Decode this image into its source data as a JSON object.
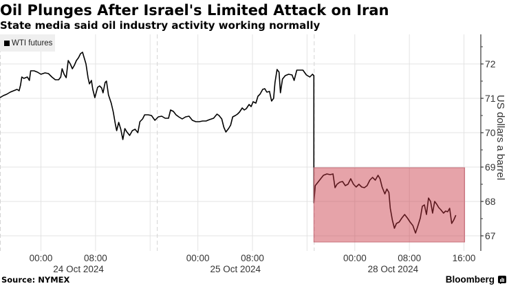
{
  "header": {
    "title": "Oil Plunges After Israel's Limited Attack on Iran",
    "subtitle": "State media said oil industry activity working normally"
  },
  "legend": {
    "items": [
      {
        "label": "WTI futures",
        "icon": "square-swatch-icon",
        "color": "#000000"
      }
    ]
  },
  "footer": {
    "source": "Source: NYMEX",
    "brand": "Bloomberg",
    "brand_icon": "bloomberg-terminal-icon"
  },
  "colors": {
    "line": "#000000",
    "grid": "#e3e3e3",
    "axis": "#333333",
    "tick_label": "#333333",
    "highlight_fill": "rgba(200,50,65,0.45)",
    "highlight_stroke": "#c8707c",
    "legend_bg": "#efefef"
  },
  "chart_data": {
    "type": "line",
    "title": "Oil Plunges After Israel's Limited Attack on Iran",
    "subtitle": "State media said oil industry activity working normally",
    "xlabel": "",
    "ylabel": "US dollars a barrel",
    "ylim": [
      66.56,
      72.86
    ],
    "grid": true,
    "legend_position": "top-left",
    "x_ticks": [
      {
        "x": 6,
        "label": "00:00"
      },
      {
        "x": 14,
        "label": "08:00"
      },
      {
        "x": 29,
        "label": "00:00"
      },
      {
        "x": 37,
        "label": "08:00"
      },
      {
        "x": 52,
        "label": "00:00"
      },
      {
        "x": 60,
        "label": "08:00"
      },
      {
        "x": 68,
        "label": "16:00"
      }
    ],
    "x_gridlines": [
      6,
      14,
      22,
      29,
      37,
      45,
      52,
      60,
      68
    ],
    "session_breaks": [
      0,
      23,
      46
    ],
    "date_labels": [
      {
        "x": 11.5,
        "label": "24 Oct 2024"
      },
      {
        "x": 34.5,
        "label": "25 Oct 2024"
      },
      {
        "x": 57.6,
        "label": "28 Oct 2024"
      }
    ],
    "y_ticks": [
      67,
      68,
      69,
      70,
      71,
      72
    ],
    "y_minor_ticks": [
      67.5,
      68.5,
      69.5,
      70.5,
      71.5,
      72.5
    ],
    "highlight": {
      "x_start": 46,
      "x_end": 68.1,
      "y_low": 66.82,
      "y_high": 68.98
    },
    "series": [
      {
        "name": "WTI futures",
        "points": [
          [
            0.0,
            71.02
          ],
          [
            0.5,
            71.08
          ],
          [
            1.0,
            71.12
          ],
          [
            1.5,
            71.18
          ],
          [
            2.0,
            71.22
          ],
          [
            2.5,
            71.26
          ],
          [
            2.8,
            71.22
          ],
          [
            3.0,
            71.38
          ],
          [
            3.2,
            71.62
          ],
          [
            3.5,
            71.58
          ],
          [
            4.0,
            71.62
          ],
          [
            4.3,
            71.52
          ],
          [
            4.5,
            71.8
          ],
          [
            5.0,
            71.8
          ],
          [
            5.5,
            71.76
          ],
          [
            6.0,
            71.7
          ],
          [
            6.6,
            71.74
          ],
          [
            7.1,
            71.72
          ],
          [
            7.6,
            71.62
          ],
          [
            8.1,
            71.54
          ],
          [
            8.6,
            71.54
          ],
          [
            8.9,
            71.62
          ],
          [
            9.1,
            71.86
          ],
          [
            9.4,
            71.7
          ],
          [
            9.7,
            71.6
          ],
          [
            10.0,
            72.1
          ],
          [
            10.3,
            72.0
          ],
          [
            10.6,
            71.86
          ],
          [
            10.9,
            71.96
          ],
          [
            11.2,
            72.1
          ],
          [
            11.5,
            72.18
          ],
          [
            11.8,
            72.3
          ],
          [
            12.1,
            72.34
          ],
          [
            12.6,
            72.0
          ],
          [
            12.9,
            71.6
          ],
          [
            13.1,
            71.42
          ],
          [
            13.4,
            71.52
          ],
          [
            13.6,
            71.26
          ],
          [
            13.9,
            71.02
          ],
          [
            14.3,
            71.32
          ],
          [
            14.6,
            71.36
          ],
          [
            14.9,
            71.3
          ],
          [
            15.1,
            71.16
          ],
          [
            15.4,
            71.46
          ],
          [
            15.6,
            71.5
          ],
          [
            15.9,
            71.1
          ],
          [
            16.3,
            70.86
          ],
          [
            16.6,
            70.6
          ],
          [
            16.9,
            70.26
          ],
          [
            17.1,
            70.06
          ],
          [
            17.4,
            70.3
          ],
          [
            17.7,
            70.1
          ],
          [
            18.0,
            69.8
          ],
          [
            18.3,
            70.12
          ],
          [
            18.6,
            70.02
          ],
          [
            19.0,
            69.92
          ],
          [
            19.4,
            70.06
          ],
          [
            19.8,
            70.1
          ],
          [
            20.2,
            70.0
          ],
          [
            20.5,
            70.32
          ],
          [
            20.9,
            70.4
          ],
          [
            21.2,
            70.52
          ],
          [
            21.7,
            70.52
          ],
          [
            22.2,
            70.5
          ],
          [
            22.7,
            70.36
          ],
          [
            23.2,
            70.46
          ],
          [
            23.7,
            70.48
          ],
          [
            24.2,
            70.42
          ],
          [
            24.7,
            70.42
          ],
          [
            25.0,
            70.66
          ],
          [
            25.4,
            70.62
          ],
          [
            25.8,
            70.52
          ],
          [
            26.2,
            70.46
          ],
          [
            26.7,
            70.4
          ],
          [
            27.2,
            70.46
          ],
          [
            27.7,
            70.48
          ],
          [
            28.2,
            70.36
          ],
          [
            28.7,
            70.32
          ],
          [
            29.2,
            70.32
          ],
          [
            29.7,
            70.34
          ],
          [
            30.2,
            70.34
          ],
          [
            30.7,
            70.38
          ],
          [
            31.3,
            70.42
          ],
          [
            31.8,
            70.54
          ],
          [
            32.1,
            70.5
          ],
          [
            32.5,
            70.4
          ],
          [
            32.8,
            70.16
          ],
          [
            33.1,
            70.02
          ],
          [
            33.5,
            70.12
          ],
          [
            33.8,
            70.22
          ],
          [
            34.1,
            70.46
          ],
          [
            34.5,
            70.5
          ],
          [
            34.8,
            70.54
          ],
          [
            35.1,
            70.6
          ],
          [
            35.5,
            70.72
          ],
          [
            35.8,
            70.66
          ],
          [
            36.1,
            70.7
          ],
          [
            36.5,
            70.82
          ],
          [
            36.8,
            70.76
          ],
          [
            37.1,
            70.9
          ],
          [
            37.5,
            70.86
          ],
          [
            37.8,
            71.06
          ],
          [
            38.1,
            71.12
          ],
          [
            38.5,
            71.26
          ],
          [
            38.8,
            71.28
          ],
          [
            39.1,
            71.18
          ],
          [
            39.5,
            71.2
          ],
          [
            39.8,
            70.92
          ],
          [
            40.1,
            71.0
          ],
          [
            40.3,
            71.46
          ],
          [
            40.6,
            71.84
          ],
          [
            40.9,
            71.76
          ],
          [
            41.1,
            71.16
          ],
          [
            41.4,
            71.56
          ],
          [
            41.8,
            71.66
          ],
          [
            42.3,
            71.7
          ],
          [
            42.8,
            71.68
          ],
          [
            43.1,
            71.52
          ],
          [
            43.5,
            71.82
          ],
          [
            44.0,
            71.82
          ],
          [
            44.4,
            71.82
          ],
          [
            44.9,
            71.68
          ],
          [
            45.4,
            71.62
          ],
          [
            45.8,
            71.7
          ],
          [
            46.0,
            71.66
          ],
          [
            46.0,
            67.96
          ],
          [
            46.2,
            68.46
          ],
          [
            46.6,
            68.56
          ],
          [
            47.0,
            68.66
          ],
          [
            47.4,
            68.76
          ],
          [
            47.9,
            68.8
          ],
          [
            48.4,
            68.78
          ],
          [
            48.8,
            68.8
          ],
          [
            49.1,
            68.4
          ],
          [
            49.4,
            68.5
          ],
          [
            49.8,
            68.56
          ],
          [
            50.2,
            68.58
          ],
          [
            50.6,
            68.46
          ],
          [
            51.0,
            68.5
          ],
          [
            51.4,
            68.66
          ],
          [
            51.8,
            68.5
          ],
          [
            52.2,
            68.42
          ],
          [
            52.6,
            68.5
          ],
          [
            53.0,
            68.42
          ],
          [
            53.4,
            68.4
          ],
          [
            53.8,
            68.46
          ],
          [
            54.2,
            68.62
          ],
          [
            54.6,
            68.7
          ],
          [
            55.0,
            68.62
          ],
          [
            55.4,
            68.76
          ],
          [
            55.7,
            68.66
          ],
          [
            56.0,
            68.42
          ],
          [
            56.4,
            68.22
          ],
          [
            56.7,
            68.36
          ],
          [
            57.0,
            68.26
          ],
          [
            57.2,
            67.8
          ],
          [
            57.5,
            67.46
          ],
          [
            57.8,
            67.22
          ],
          [
            58.1,
            67.36
          ],
          [
            58.5,
            67.4
          ],
          [
            58.9,
            67.52
          ],
          [
            59.3,
            67.62
          ],
          [
            59.7,
            67.52
          ],
          [
            60.1,
            67.4
          ],
          [
            60.5,
            67.3
          ],
          [
            60.9,
            67.08
          ],
          [
            61.2,
            67.26
          ],
          [
            61.6,
            67.52
          ],
          [
            61.9,
            67.86
          ],
          [
            62.2,
            67.9
          ],
          [
            62.5,
            67.62
          ],
          [
            62.8,
            68.1
          ],
          [
            63.1,
            68.0
          ],
          [
            63.4,
            67.66
          ],
          [
            63.7,
            68.0
          ],
          [
            64.0,
            67.92
          ],
          [
            64.3,
            67.82
          ],
          [
            64.6,
            67.76
          ],
          [
            65.0,
            67.66
          ],
          [
            65.3,
            67.72
          ],
          [
            65.6,
            67.7
          ],
          [
            65.9,
            67.8
          ],
          [
            66.2,
            67.36
          ],
          [
            66.5,
            67.46
          ],
          [
            66.8,
            67.6
          ]
        ]
      }
    ]
  }
}
